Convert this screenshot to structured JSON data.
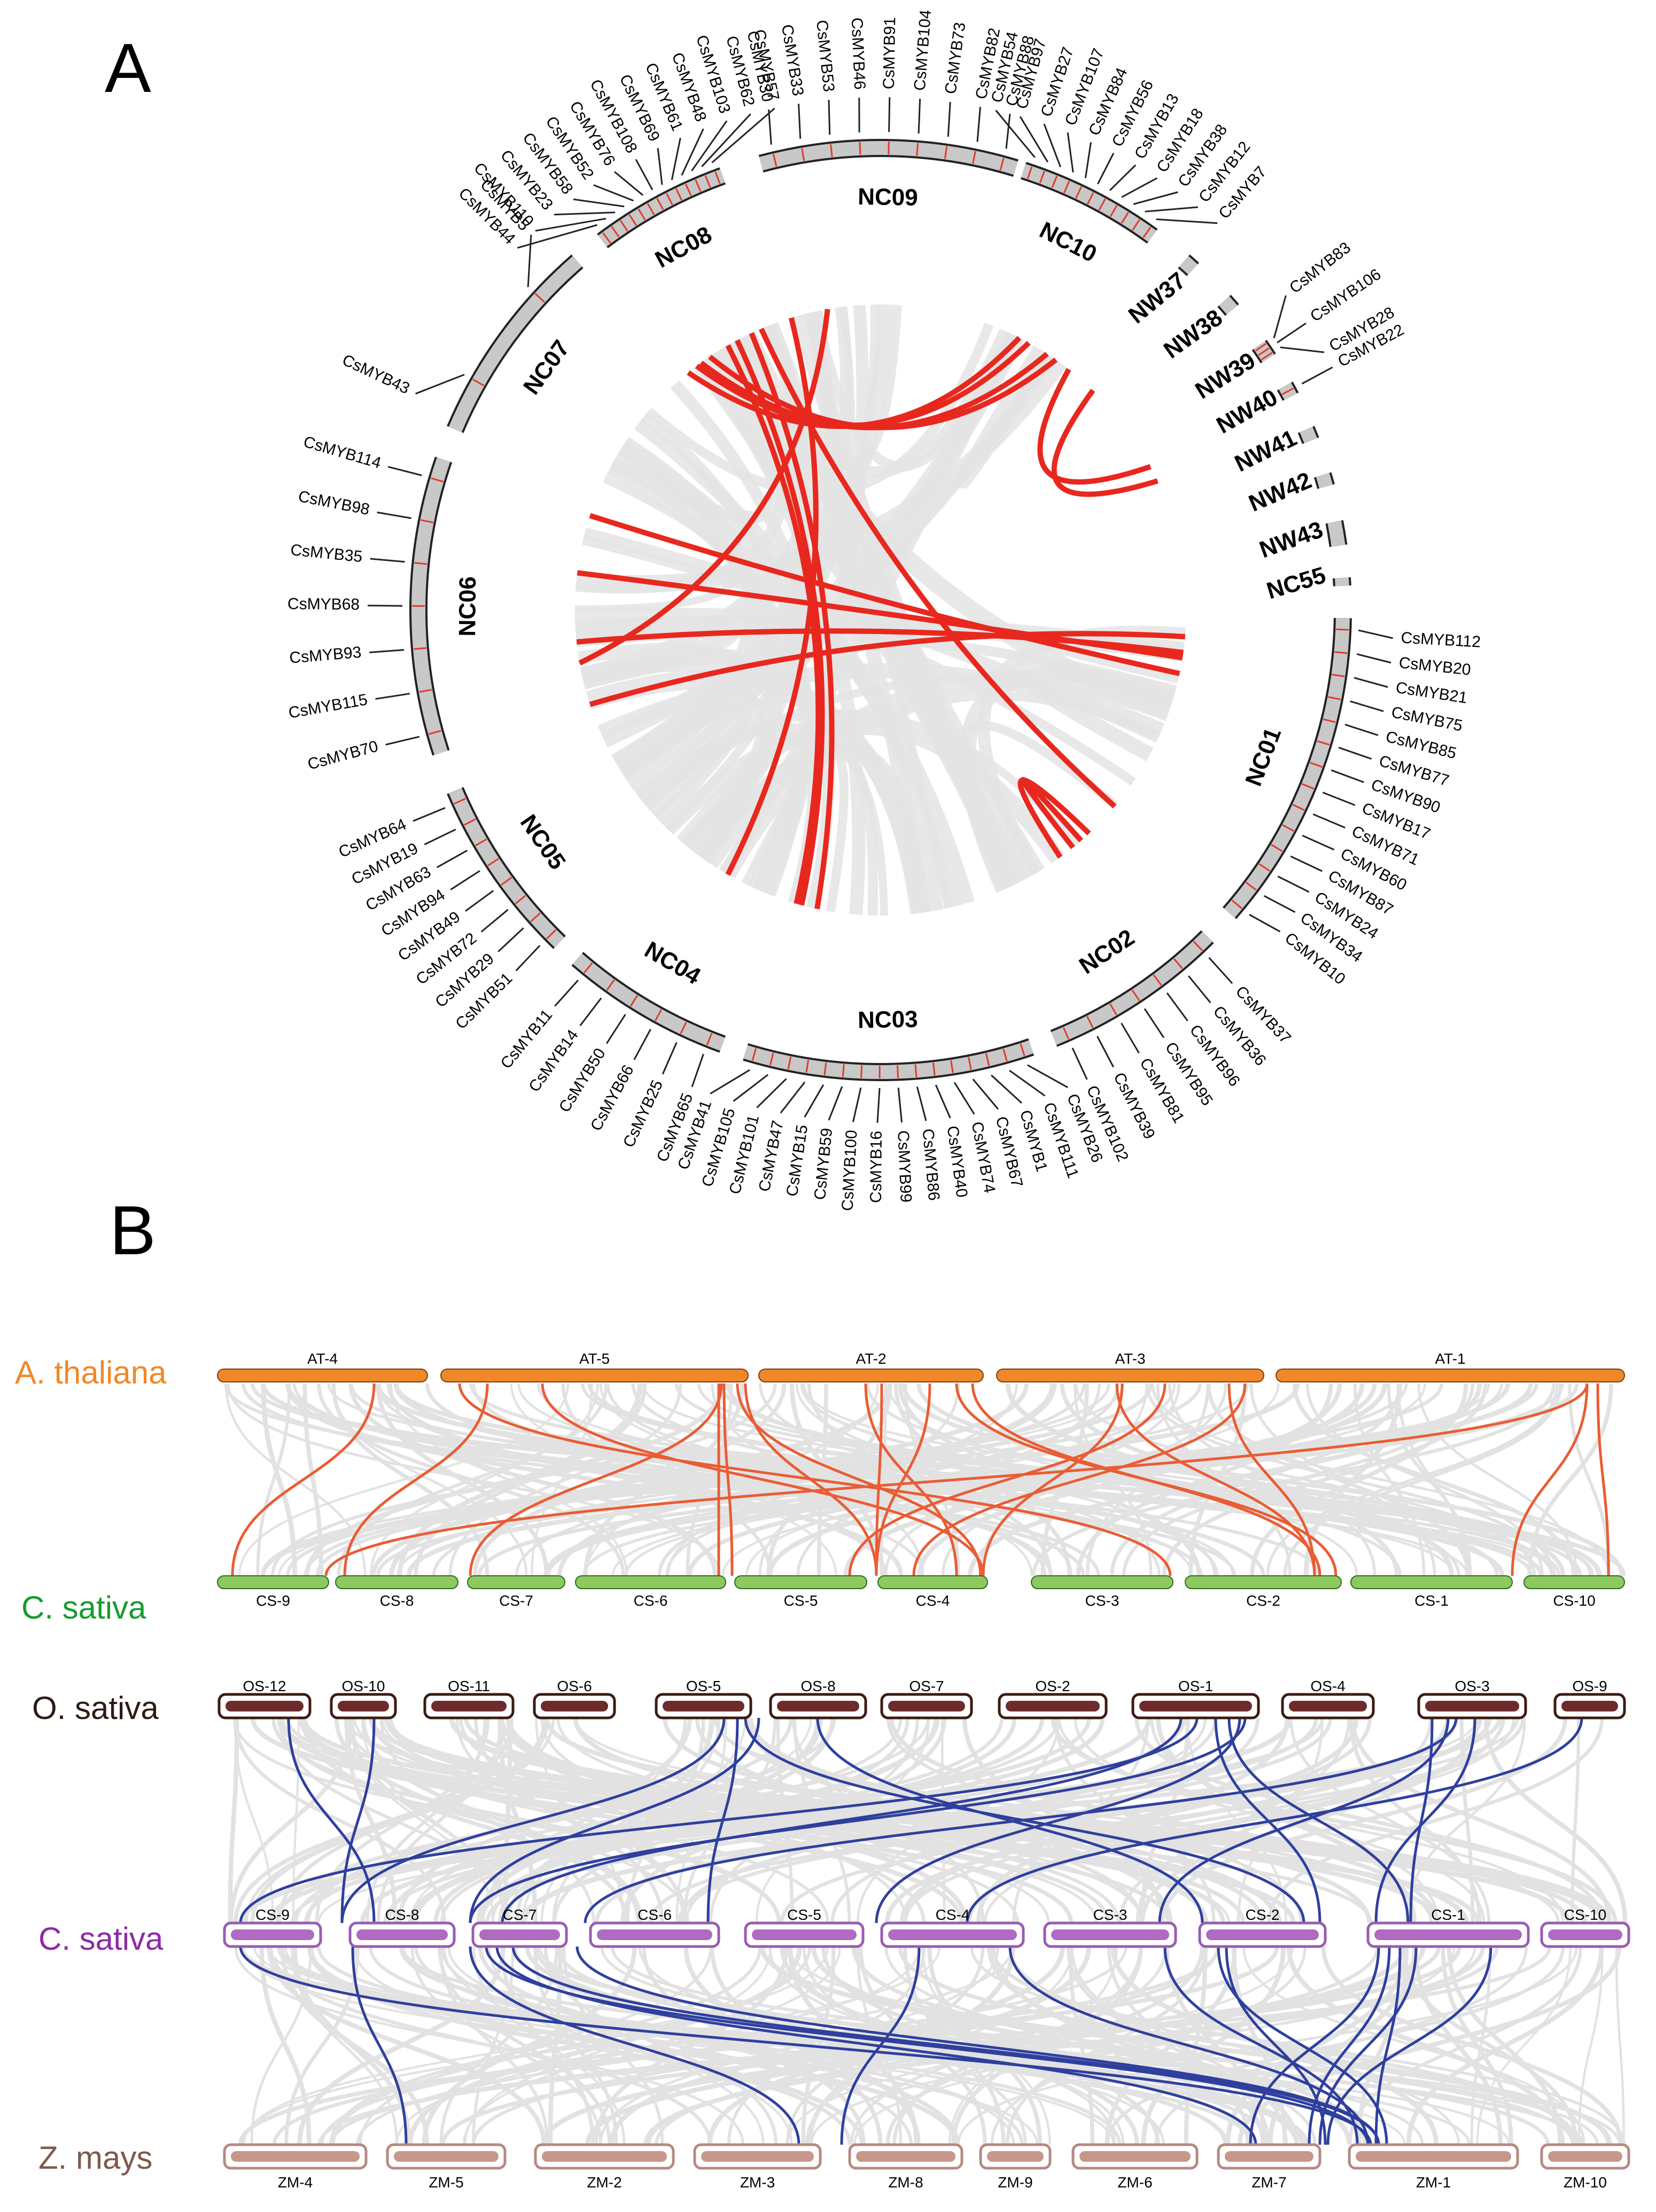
{
  "panelA": {
    "letter": "A",
    "chromosomes": [
      {
        "id": "NC01",
        "label": "NC01",
        "start": 91,
        "end": 131,
        "genes": [
          "CsMYB112",
          "CsMYB20",
          "CsMYB21",
          "CsMYB75",
          "CsMYB85",
          "CsMYB77",
          "CsMYB90",
          "CsMYB17",
          "CsMYB71",
          "CsMYB60",
          "CsMYB87",
          "CsMYB24",
          "CsMYB34",
          "CsMYB10"
        ]
      },
      {
        "id": "NC02",
        "label": "NC02",
        "start": 135,
        "end": 158,
        "genes": [
          "CsMYB37",
          "CsMYB36",
          "CsMYB96",
          "CsMYB95",
          "CsMYB81",
          "CsMYB39",
          "CsMYB102"
        ]
      },
      {
        "id": "NC03",
        "label": "NC03",
        "start": 161,
        "end": 197,
        "genes": [
          "CsMYB26",
          "CsMYB111",
          "CsMYB1",
          "CsMYB67",
          "CsMYB74",
          "CsMYB40",
          "CsMYB86",
          "CsMYB99",
          "CsMYB16",
          "CsMYB100",
          "CsMYB59",
          "CsMYB15",
          "CsMYB47",
          "CsMYB101",
          "CsMYB105",
          "CsMYB41"
        ]
      },
      {
        "id": "NC04",
        "label": "NC04",
        "start": 200,
        "end": 221,
        "genes": [
          "CsMYB65",
          "CsMYB25",
          "CsMYB66",
          "CsMYB50",
          "CsMYB14",
          "CsMYB11"
        ]
      },
      {
        "id": "NC05",
        "label": "NC05",
        "start": 224,
        "end": 247,
        "genes": [
          "CsMYB51",
          "CsMYB29",
          "CsMYB72",
          "CsMYB49",
          "CsMYB94",
          "CsMYB63",
          "CsMYB19",
          "CsMYB64"
        ]
      },
      {
        "id": "NC06",
        "label": "NC06",
        "start": 252,
        "end": 289,
        "genes": [
          "CsMYB70",
          "CsMYB115",
          "CsMYB93",
          "CsMYB68",
          "CsMYB35",
          "CsMYB98",
          "CsMYB114"
        ]
      },
      {
        "id": "NC07",
        "label": "NC07",
        "start": 293,
        "end": 319,
        "genes": [
          "CsMYB43",
          "CsMYB5"
        ]
      },
      {
        "id": "NC08",
        "label": "NC08",
        "start": 323,
        "end": 340,
        "genes": [
          "CsMYB44",
          "CsMYB110",
          "CsMYB23",
          "CsMYB58",
          "CsMYB52",
          "CsMYB76",
          "CsMYB108",
          "CsMYB69",
          "CsMYB61",
          "CsMYB48",
          "CsMYB103",
          "CsMYB62",
          "CsMYB57"
        ]
      },
      {
        "id": "NC09",
        "label": "NC09",
        "start": 345,
        "end": 377,
        "genes": [
          "CsMYB30",
          "CsMYB33",
          "CsMYB53",
          "CsMYB46",
          "CsMYB91",
          "CsMYB104",
          "CsMYB73",
          "CsMYB82",
          "CsMYB88"
        ]
      },
      {
        "id": "NC10",
        "label": "NC10",
        "start": 378,
        "end": 396,
        "genes": [
          "CsMYB54",
          "CsMYB97",
          "CsMYB27",
          "CsMYB107",
          "CsMYB84",
          "CsMYB56",
          "CsMYB13",
          "CsMYB18",
          "CsMYB38",
          "CsMYB12",
          "CsMYB7"
        ]
      },
      {
        "id": "NW37",
        "label": "NW37",
        "start": 41,
        "end": 42.5,
        "genes": []
      },
      {
        "id": "NW38",
        "label": "NW38",
        "start": 48,
        "end": 49.5,
        "genes": []
      },
      {
        "id": "NW39",
        "label": "NW39",
        "start": 55,
        "end": 57,
        "genes": [
          "CsMYB83",
          "CsMYB106",
          "CsMYB28"
        ]
      },
      {
        "id": "NW40",
        "label": "NW40",
        "start": 61,
        "end": 62.5,
        "genes": [
          "CsMYB22"
        ]
      },
      {
        "id": "NW41",
        "label": "NW41",
        "start": 67,
        "end": 68.5,
        "genes": []
      },
      {
        "id": "NW42",
        "label": "NW42",
        "start": 73,
        "end": 74.5,
        "genes": []
      },
      {
        "id": "NW43",
        "label": "NW43",
        "start": 79,
        "end": 82,
        "genes": []
      },
      {
        "id": "NC55",
        "label": "NC55",
        "start": 86,
        "end": 87,
        "genes": []
      }
    ],
    "red_links": [
      [
        27,
        321
      ],
      [
        29,
        323
      ],
      [
        33,
        324
      ],
      [
        35,
        326
      ],
      [
        38,
        62
      ],
      [
        44,
        65
      ],
      [
        95,
        252
      ],
      [
        99,
        277
      ],
      [
        102,
        288
      ],
      [
        98,
        264
      ],
      [
        137,
        144
      ],
      [
        139,
        141
      ],
      [
        130,
        337
      ],
      [
        192,
        335
      ],
      [
        195,
        332
      ],
      [
        196,
        330
      ],
      [
        210,
        343
      ],
      [
        260,
        350
      ]
    ]
  },
  "panelB": {
    "letter": "B",
    "top": {
      "species": [
        {
          "name": "A. thaliana",
          "color": "#f0882a"
        },
        {
          "name": "C. sativa",
          "color": "#189b2e"
        }
      ],
      "at_bars": [
        "AT-4",
        "AT-5",
        "AT-2",
        "AT-3",
        "AT-1"
      ],
      "cs_bars": [
        "CS-9",
        "CS-8",
        "CS-7",
        "CS-6",
        "CS-5",
        "CS-4",
        "CS-3",
        "CS-2",
        "CS-1",
        "CS-10"
      ],
      "link_color": "#ea5c34"
    },
    "bottom": {
      "species": [
        {
          "name": "O. sativa",
          "color": "#2e1a14"
        },
        {
          "name": "C. sativa",
          "color": "#8e2aa6"
        },
        {
          "name": "Z. mays",
          "color": "#7c5b4c"
        }
      ],
      "os_bars": [
        "OS-12",
        "OS-10",
        "OS-11",
        "OS-6",
        "OS-5",
        "OS-8",
        "OS-7",
        "OS-2",
        "OS-1",
        "OS-4",
        "OS-3",
        "OS-9"
      ],
      "cs_bars": [
        "CS-9",
        "CS-8",
        "CS-7",
        "CS-6",
        "CS-5",
        "CS-4",
        "CS-3",
        "CS-2",
        "CS-1",
        "CS-10"
      ],
      "zm_bars": [
        "ZM-4",
        "ZM-5",
        "ZM-2",
        "ZM-3",
        "ZM-8",
        "ZM-9",
        "ZM-6",
        "ZM-7",
        "ZM-1",
        "ZM-10"
      ],
      "link_color": "#2f3f9e"
    }
  }
}
